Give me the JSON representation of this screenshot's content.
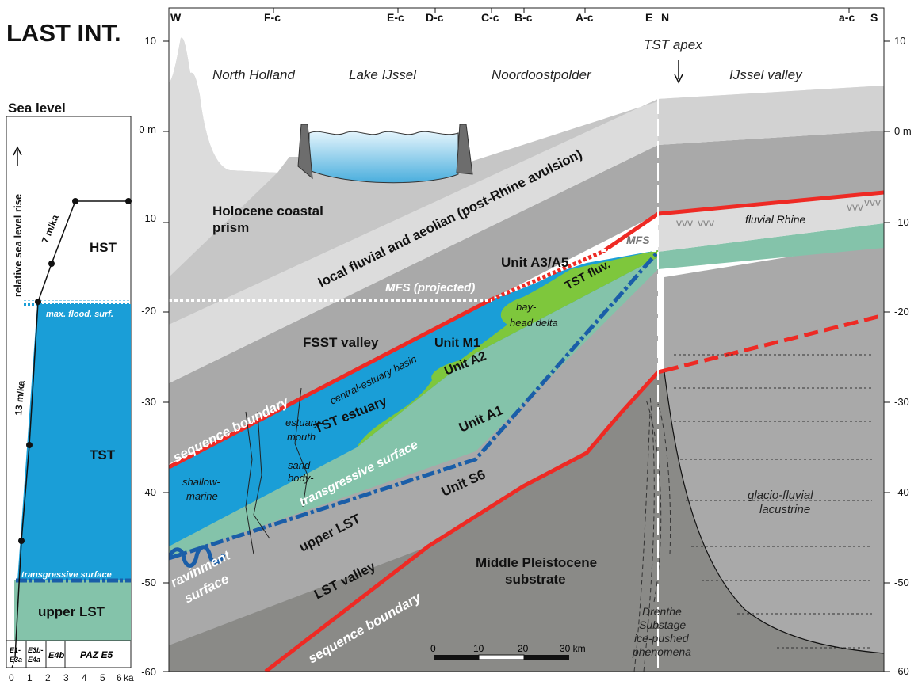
{
  "title": "LAST INT.",
  "sea_level_panel": {
    "heading": "Sea level",
    "axis_label": "relative sea level rise",
    "hst": "HST",
    "tst": "TST",
    "upper_lst": "upper LST",
    "mfs_label": "max. flood. surf.",
    "ts_label": "transgressive surface",
    "rate_upper": "7 m/ka",
    "rate_lower": "13 m/ka",
    "paz": [
      "E1-",
      "E3a",
      "E3b-",
      "E4a",
      "E4b",
      "PAZ E5"
    ],
    "ka_ticks": [
      "0",
      "1",
      "2",
      "3",
      "4",
      "5",
      "6"
    ],
    "ka_unit": "ka",
    "curve_points_ka_m": [
      [
        0.5,
        -45.5
      ],
      [
        1.0,
        -35
      ],
      [
        1.4,
        -19
      ],
      [
        2.2,
        -14.8
      ],
      [
        3.5,
        -8
      ],
      [
        6.5,
        -8
      ]
    ],
    "colors": {
      "tst_fill": "#1a9ed7",
      "lst_fill": "#84c3aa",
      "mfs": "#1a9ed7",
      "ts": "#1a5ea8"
    }
  },
  "top_labels": {
    "w": "W",
    "fc": "F-c",
    "ec": "E-c",
    "dc": "D-c",
    "cc": "C-c",
    "bc": "B-c",
    "ac": "A-c",
    "e": "E",
    "n": "N",
    "ac2": "a-c",
    "s": "S"
  },
  "depth_ticks_left": [
    "10",
    "0 m",
    "-10",
    "-20",
    "-30",
    "-40",
    "-50",
    "-60"
  ],
  "depth_ticks_right": [
    "10",
    "0 m",
    "-10",
    "-20",
    "-30",
    "-40",
    "-50",
    "-60"
  ],
  "regions": {
    "north_holland": "North Holland",
    "lake_ijssel": "Lake IJssel",
    "noordoostpolder": "Noordoostpolder",
    "ijssel_valley": "IJssel valley",
    "tst_apex": "TST apex"
  },
  "units": {
    "holocene1": "Holocene coastal",
    "holocene2": "prism",
    "local_fluvial": "local fluvial and aeolian (post-Rhine avulsion)",
    "unit_a3a5": "Unit A3/A5",
    "mfs": "MFS",
    "mfs_projected": "MFS (projected)",
    "fsst_valley": "FSST valley",
    "unit_m1": "Unit M1",
    "bay": "bay-",
    "head_delta": "head delta",
    "tst_fluv": "TST fluv.",
    "unit_a2": "Unit A2",
    "central_estuary": "central-estuary basin",
    "tst_estuary": "TST estuary",
    "estuary1": "estuary-",
    "estuary2": "mouth",
    "sand1": "sand-",
    "sand2": "body-",
    "shallow1": "shallow-",
    "shallow2": "marine",
    "sequence_boundary_upper": "sequence boundary",
    "transgressive_surface": "transgressive surface",
    "unit_a1": "Unit A1",
    "upper_lst": "upper LST",
    "unit_s6": "Unit S6",
    "ravinment1": "ravinment",
    "ravinment2": "surface",
    "lst_valley": "LST valley",
    "middle_pleist1": "Middle Pleistocene",
    "middle_pleist2": "substrate",
    "sequence_boundary_lower": "sequence boundary",
    "fluvial_rhine": "fluvial Rhine",
    "glacio1": "glacio-fluvial",
    "glacio2": "lacustrine",
    "drenthe1": "Drenthe",
    "drenthe2": "Substage",
    "drenthe3": "ice-pushed",
    "drenthe4": "phenomena"
  },
  "scale_bar": {
    "ticks": [
      "0",
      "10",
      "20",
      "30 km"
    ]
  },
  "colors": {
    "light_grey": "#dcdcdc",
    "mid_grey": "#c6c6c6",
    "dark_grey": "#a9a9a9",
    "substrate": "#8a8a87",
    "tst_blue": "#1a9ed7",
    "tst_green": "#7ec73c",
    "lst_green": "#84c3aa",
    "red_boundary": "#ee2a24",
    "ts_blue": "#1a5ea8",
    "water": "#8fd0ef"
  }
}
